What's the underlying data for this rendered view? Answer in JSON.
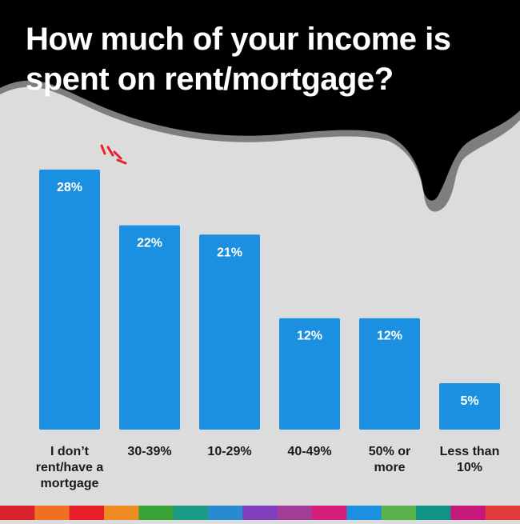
{
  "chart_data": {
    "type": "bar",
    "title": "How much of your income is spent on rent/mortgage?",
    "title_lines": [
      "How much of your income is",
      "spent on rent/mortgage?"
    ],
    "categories": [
      [
        "I don’t",
        "rent/have a",
        "mortgage"
      ],
      [
        "30-39%"
      ],
      [
        "10-29%"
      ],
      [
        "40-49%"
      ],
      [
        "50% or",
        "more"
      ],
      [
        "Less than",
        "10%"
      ]
    ],
    "values": [
      28,
      22,
      21,
      12,
      12,
      5
    ],
    "value_labels": [
      "28%",
      "22%",
      "21%",
      "12%",
      "12%",
      "5%"
    ],
    "xlabel": "",
    "ylabel": "",
    "ylim": [
      0,
      28
    ],
    "grid": false,
    "legend": "none",
    "highlight_index": 0
  },
  "colors": {
    "background": "#dcdcdd",
    "bar": "#1b8fe0",
    "bubble": "#000000",
    "bubble_shadow": "#7d7e80",
    "title_text": "#ffffff",
    "label_text": "#1a1a1a",
    "value_text_inside": "#ffffff",
    "highlight_marks": "#e8202a",
    "stripe": [
      "#d9232c",
      "#ef6f23",
      "#e8202a",
      "#f08a24",
      "#3aa335",
      "#1a9a83",
      "#2a8ad0",
      "#7f3fbf",
      "#a23d98",
      "#d61f7a",
      "#1b8fe0",
      "#5bb24b",
      "#0e9384",
      "#c4197a",
      "#e03a3a"
    ]
  }
}
